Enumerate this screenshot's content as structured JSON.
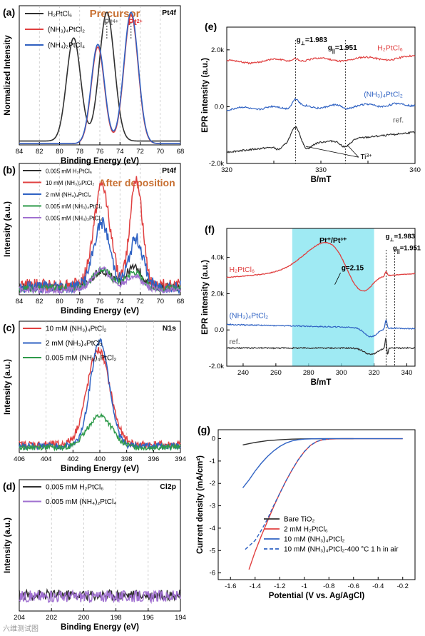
{
  "watermark": "六维测试图",
  "chart_data": [
    {
      "id": "a",
      "type": "line",
      "panel_label": "(a)",
      "tag": "Pt4f",
      "title": "Precursor",
      "xlabel": "Binding Energy (eV)",
      "ylabel": "Normalized Intensity",
      "xlim": [
        84,
        68
      ],
      "xreversed": true,
      "xticks": [
        84,
        82,
        80,
        78,
        76,
        74,
        72,
        70,
        68
      ],
      "grid_lines_x": [
        82,
        80,
        78,
        76,
        74,
        72,
        70
      ],
      "annotations": [
        {
          "text": "Pt",
          "sup": "4+",
          "x": 75.3,
          "color": "#7a7a7a"
        },
        {
          "text": "Pt",
          "sup": "2+",
          "x": 72.9,
          "color": "#e03030"
        }
      ],
      "series": [
        {
          "name": "H2PtCl6",
          "legend": "H₂PtCl₆",
          "color": "#303030",
          "peaks": [
            [
              78.6,
              0.8,
              0.7
            ],
            [
              75.3,
              1.0,
              0.75
            ]
          ],
          "baseline": 0.03
        },
        {
          "name": "(NH3)4PtCl2",
          "legend": "(NH₃)₄PtCl₂",
          "color": "#e04040",
          "peaks": [
            [
              76.2,
              0.75,
              0.65
            ],
            [
              72.9,
              1.0,
              0.7
            ]
          ],
          "baseline": 0.01
        },
        {
          "name": "(NH4)2PtCl4",
          "legend": "(NH₄)₂PtCl₄",
          "color": "#3060c0",
          "peaks": [
            [
              76.2,
              0.77,
              0.66
            ],
            [
              72.9,
              1.02,
              0.71
            ]
          ],
          "baseline": 0.01
        }
      ]
    },
    {
      "id": "b",
      "type": "line",
      "panel_label": "(b)",
      "tag": "Pt4f",
      "title": "After deposition",
      "xlabel": "Binding Energy (eV)",
      "ylabel": "Intensity (a.u.)",
      "xlim": [
        84,
        68
      ],
      "xreversed": true,
      "xticks": [
        84,
        82,
        80,
        78,
        76,
        74,
        72,
        70,
        68
      ],
      "grid_lines_x": [
        82,
        80,
        78,
        76,
        74,
        72,
        70
      ],
      "series": [
        {
          "name": "0.005 mM H2PtCl6",
          "legend": "0.005 mM H₂PtCl₆",
          "color": "#303030",
          "peaks": [
            [
              75.8,
              0.1,
              0.9
            ],
            [
              72.6,
              0.12,
              0.8
            ]
          ],
          "baseline": 0.05,
          "noise": 0.025
        },
        {
          "name": "10 mM (NH3)4PtCl2",
          "legend": "10 mM (NH₃)₄PtCl₂",
          "color": "#e04040",
          "peaks": [
            [
              75.8,
              0.62,
              0.8
            ],
            [
              72.4,
              0.68,
              0.6
            ]
          ],
          "baseline": 0.06,
          "noise": 0.04
        },
        {
          "name": "2 mM (NH3)4PtCl2",
          "legend": "2 mM (NH₃)₄PtCl₂",
          "color": "#2f62c3",
          "peaks": [
            [
              75.8,
              0.4,
              0.8
            ],
            [
              72.4,
              0.3,
              0.7
            ]
          ],
          "baseline": 0.05,
          "noise": 0.04
        },
        {
          "name": "0.005 mM (NH3)4PtCl2",
          "legend": "0.005 mM (NH₃)₄PtCl₂",
          "color": "#2e9a4a",
          "peaks": [
            [
              75.8,
              0.12,
              0.9
            ],
            [
              72.6,
              0.1,
              0.8
            ]
          ],
          "baseline": 0.04,
          "noise": 0.02
        },
        {
          "name": "0.005 mM (NH4)2PtCl4",
          "legend": "0.005 mM (NH₄)₂PtCl₄",
          "color": "#a070d0",
          "peaks": [
            [
              75.8,
              0.13,
              0.9
            ],
            [
              72.6,
              0.09,
              0.8
            ]
          ],
          "baseline": 0.03,
          "noise": 0.02
        }
      ]
    },
    {
      "id": "c",
      "type": "line",
      "panel_label": "(c)",
      "tag": "N1s",
      "xlabel": "Binding Energy (eV)",
      "ylabel": "Intensity (a.u.)",
      "xlim": [
        406,
        394
      ],
      "xreversed": true,
      "xticks": [
        406,
        404,
        402,
        400,
        398,
        396,
        394
      ],
      "grid_lines_x": [
        404,
        402,
        400,
        398,
        396
      ],
      "series": [
        {
          "name": "10 mM (NH3)4PtCl2",
          "legend": "10 mM (NH₃)₄PtCl₂",
          "color": "#e04040",
          "peaks": [
            [
              400.1,
              0.72,
              0.85
            ]
          ],
          "baseline": 0.06,
          "noise": 0.03
        },
        {
          "name": "2 mM (NH3)4PtCl2",
          "legend": "2 mM (NH₃)₄PtCl₂",
          "color": "#2f62c3",
          "peaks": [
            [
              400.0,
              0.8,
              0.7
            ]
          ],
          "baseline": 0.05,
          "noise": 0.025
        },
        {
          "name": "0.005 mM (NH3)4PtCl2",
          "legend": "0.005 mM (NH₃)₄PtCl₂",
          "color": "#2e9a4a",
          "peaks": [
            [
              400.0,
              0.24,
              0.9
            ]
          ],
          "baseline": 0.04,
          "noise": 0.02
        }
      ]
    },
    {
      "id": "d",
      "type": "line",
      "panel_label": "(d)",
      "tag": "Cl2p",
      "xlabel": "Binding Energy (eV)",
      "ylabel": "Intensity (a.u.)",
      "xlim": [
        204,
        194
      ],
      "xreversed": true,
      "xticks": [
        204,
        202,
        200,
        198,
        196,
        194
      ],
      "grid_lines_x": [
        202,
        200,
        198,
        196
      ],
      "series": [
        {
          "name": "0.005 mM H2PtCl6",
          "legend": "0.005 mM H₂PtCl₆",
          "color": "#303030",
          "peaks": [],
          "baseline": 0.11,
          "noise": 0.035
        },
        {
          "name": "0.005 mM (NH4)2PtCl4",
          "legend": "0.005 mM (NH₄)₂PtCl₄",
          "color": "#a070d0",
          "peaks": [],
          "baseline": 0.1,
          "noise": 0.04
        }
      ]
    },
    {
      "id": "e",
      "type": "line",
      "panel_label": "(e)",
      "xlabel": "B/mT",
      "ylabel": "EPR intensity (a.u.)",
      "xlim": [
        320,
        340
      ],
      "ylim": [
        -2000,
        2800
      ],
      "xticks": [
        320,
        325,
        330,
        335,
        340
      ],
      "xticklabels": [
        "320",
        "",
        "330",
        "",
        "340"
      ],
      "yticks": [
        -2000,
        0,
        2000
      ],
      "yticklabels": [
        "-2.0k",
        "0.0",
        "2.0k"
      ],
      "vlines": [
        327.3,
        332.6
      ],
      "annotations": [
        {
          "text": "g",
          "sub": "⊥",
          "rest": "=1.983",
          "x": 327.4,
          "y": 2270
        },
        {
          "text": "g",
          "sub": "||",
          "rest": "=1.951",
          "x": 331.8,
          "y": 2000
        },
        {
          "text": "Ti",
          "sup": "3+",
          "x": 334.2,
          "y": -1850
        }
      ],
      "series": [
        {
          "name": "H2PtCl6",
          "label": "H₂PtCl₆",
          "color": "#e04040",
          "offset": 1650
        },
        {
          "name": "(NH3)4PtCl2",
          "label": "(NH₃)₄PtCl₂",
          "color": "#2f62c3",
          "offset": 0
        },
        {
          "name": "ref.",
          "label": "ref.",
          "color": "#303030",
          "offset": -1250
        }
      ]
    },
    {
      "id": "f",
      "type": "line",
      "panel_label": "(f)",
      "xlabel": "B/mT",
      "ylabel": "EPR intensity (a.u.)",
      "xlim": [
        230,
        345
      ],
      "ylim": [
        -2000,
        5600
      ],
      "xticks": [
        240,
        260,
        280,
        300,
        320,
        340
      ],
      "yticks": [
        -2000,
        0,
        2000,
        4000
      ],
      "yticklabels": [
        "-2.0k",
        "0.0",
        "2.0k",
        "4.0k"
      ],
      "shaded_region": [
        270,
        320
      ],
      "shaded_label": "Pt⁺/Pt³⁺",
      "vlines": [
        327.3,
        332.6
      ],
      "annotations": [
        {
          "text": "g",
          "rest": "=2.15",
          "x": 300,
          "y": 3300
        },
        {
          "text": "g",
          "sub": "⊥",
          "rest": "=1.983",
          "x": 327.0,
          "y": 5050
        },
        {
          "text": "g",
          "sub": "||",
          "rest": "=1.951",
          "x": 331.5,
          "y": 4400
        }
      ],
      "series": [
        {
          "name": "H2PtCl6",
          "label": "H₂PtCl₆",
          "color": "#e04040"
        },
        {
          "name": "(NH3)4PtCl2",
          "label": "(NH₃)₄PtCl₂",
          "color": "#2f62c3"
        },
        {
          "name": "ref.",
          "label": "ref.",
          "color": "#303030"
        }
      ]
    },
    {
      "id": "g",
      "type": "line",
      "panel_label": "(g)",
      "xlabel": "Potential (V vs. Ag/AgCl)",
      "ylabel": "Current density (mA/cm²)",
      "xlim": [
        -1.7,
        -0.1
      ],
      "ylim": [
        -6.3,
        0.4
      ],
      "xticks": [
        -1.6,
        -1.4,
        -1.2,
        -1.0,
        -0.8,
        -0.6,
        -0.4,
        -0.2
      ],
      "yticks": [
        -6,
        -5,
        -4,
        -3,
        -2,
        -1,
        0
      ],
      "series": [
        {
          "name": "Bare TiO2",
          "legend": "Bare TiO₂",
          "color": "#303030",
          "x": [
            -1.5,
            -1.4,
            -1.3,
            -1.2,
            -1.1,
            -1.0,
            -0.8,
            -0.6
          ],
          "y": [
            -0.28,
            -0.17,
            -0.09,
            -0.05,
            -0.02,
            -0.01,
            0.0,
            0.0
          ]
        },
        {
          "name": "2 mM H2PtCl6",
          "legend": "2 mM H₂PtCl₆",
          "color": "#e04040",
          "x": [
            -1.45,
            -1.4,
            -1.35,
            -1.3,
            -1.25,
            -1.2,
            -1.15,
            -1.1,
            -1.05,
            -1.0,
            -0.95,
            -0.9,
            -0.85,
            -0.8,
            -0.7,
            -0.6,
            -0.5,
            -0.4,
            -0.3,
            -0.2
          ],
          "y": [
            -5.85,
            -5.05,
            -4.35,
            -3.7,
            -3.05,
            -2.45,
            -1.9,
            -1.4,
            -0.95,
            -0.58,
            -0.3,
            -0.13,
            -0.05,
            -0.02,
            0,
            0,
            0,
            0,
            0,
            0
          ]
        },
        {
          "name": "10 mM (NH3)4PtCl2",
          "legend": "10 mM (NH₃)₄PtCl₂",
          "color": "#2f62c3",
          "x": [
            -1.5,
            -1.45,
            -1.4,
            -1.35,
            -1.3,
            -1.25,
            -1.2,
            -1.15,
            -1.1,
            -1.05,
            -1.0,
            -0.9,
            -0.8,
            -0.6,
            -0.4,
            -0.2
          ],
          "y": [
            -2.2,
            -1.85,
            -1.45,
            -1.1,
            -0.8,
            -0.55,
            -0.35,
            -0.2,
            -0.1,
            -0.05,
            -0.02,
            0,
            0,
            0,
            0,
            0
          ]
        },
        {
          "name": "10 mM (NH3)4PtCl2-400 °C 1 h in air",
          "legend": "10 mM (NH₃)₄PtCl₂-400 °C 1 h in air",
          "color": "#2f62c3",
          "dashed": true,
          "x": [
            -1.48,
            -1.4,
            -1.35,
            -1.3,
            -1.25,
            -1.2,
            -1.15,
            -1.1,
            -1.05,
            -1.0,
            -0.95,
            -0.9,
            -0.85,
            -0.8
          ],
          "y": [
            -4.95,
            -4.55,
            -4.1,
            -3.6,
            -3.0,
            -2.45,
            -1.9,
            -1.4,
            -0.95,
            -0.58,
            -0.3,
            -0.13,
            -0.05,
            -0.02
          ]
        }
      ]
    }
  ]
}
